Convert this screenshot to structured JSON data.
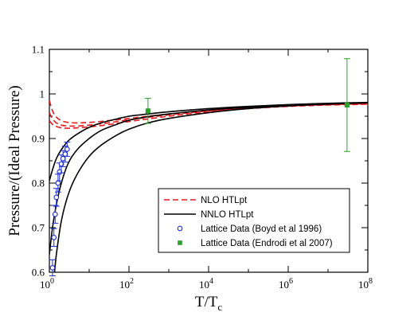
{
  "chart_data": {
    "type": "line",
    "title": "",
    "xlabel": "T/T",
    "xlabel_sub": "c",
    "ylabel": "Pressure/(Ideal Pressure)",
    "x_scale": "log",
    "xlim": [
      1,
      100000000
    ],
    "ylim": [
      0.6,
      1.1
    ],
    "x_ticks": [
      {
        "value": 1,
        "base": "10",
        "exp": "0"
      },
      {
        "value": 100,
        "base": "10",
        "exp": "2"
      },
      {
        "value": 10000,
        "base": "10",
        "exp": "4"
      },
      {
        "value": 1000000,
        "base": "10",
        "exp": "6"
      },
      {
        "value": 100000000,
        "base": "10",
        "exp": "8"
      }
    ],
    "y_ticks": [
      {
        "value": 0.6,
        "label": "0.6"
      },
      {
        "value": 0.7,
        "label": "0.7"
      },
      {
        "value": 0.8,
        "label": "0.8"
      },
      {
        "value": 0.9,
        "label": "0.9"
      },
      {
        "value": 1.0,
        "label": "1"
      },
      {
        "value": 1.1,
        "label": "1.1"
      }
    ],
    "grid": false,
    "legend_position": "bottom-right",
    "series": [
      {
        "name": "NLO HTLpt",
        "style": "dashed",
        "color": "#e8191c",
        "lines": [
          {
            "x": [
              1,
              1.2,
              1.5,
              2,
              3,
              5,
              10,
              30,
              100,
              1000,
              10000,
              100000,
              1000000,
              10000000,
              100000000
            ],
            "y": [
              0.985,
              0.962,
              0.948,
              0.94,
              0.936,
              0.935,
              0.936,
              0.94,
              0.945,
              0.955,
              0.963,
              0.969,
              0.973,
              0.976,
              0.978
            ]
          },
          {
            "x": [
              1,
              1.2,
              1.5,
              2,
              3,
              5,
              10,
              30,
              100,
              1000,
              10000,
              100000,
              1000000,
              10000000,
              100000000
            ],
            "y": [
              0.958,
              0.944,
              0.935,
              0.93,
              0.928,
              0.928,
              0.93,
              0.935,
              0.942,
              0.953,
              0.962,
              0.968,
              0.973,
              0.976,
              0.978
            ]
          },
          {
            "x": [
              1,
              1.2,
              1.5,
              2,
              3,
              5,
              10,
              30,
              100,
              1000,
              10000,
              100000,
              1000000,
              10000000,
              100000000
            ],
            "y": [
              0.94,
              0.932,
              0.927,
              0.924,
              0.923,
              0.924,
              0.926,
              0.931,
              0.938,
              0.95,
              0.96,
              0.967,
              0.972,
              0.975,
              0.977
            ]
          }
        ]
      },
      {
        "name": "NNLO HTLpt",
        "style": "solid",
        "color": "#000000",
        "lines": [
          {
            "x": [
              1,
              1.2,
              1.5,
              2,
              3,
              5,
              10,
              20,
              50,
              100,
              300,
              1000,
              10000,
              100000,
              1000000,
              10000000,
              100000000
            ],
            "y": [
              0.805,
              0.83,
              0.855,
              0.875,
              0.895,
              0.91,
              0.925,
              0.935,
              0.944,
              0.95,
              0.955,
              0.96,
              0.967,
              0.972,
              0.976,
              0.979,
              0.981
            ]
          },
          {
            "x": [
              1,
              1.2,
              1.5,
              2,
              3,
              5,
              10,
              20,
              50,
              100,
              300,
              1000,
              10000,
              100000,
              1000000,
              10000000,
              100000000
            ],
            "y": [
              0.64,
              0.7,
              0.752,
              0.8,
              0.845,
              0.875,
              0.9,
              0.918,
              0.932,
              0.941,
              0.949,
              0.955,
              0.964,
              0.97,
              0.975,
              0.978,
              0.98
            ]
          },
          {
            "x": [
              1.35,
              1.5,
              2,
              3,
              5,
              10,
              20,
              50,
              100,
              300,
              1000,
              10000,
              100000,
              1000000,
              10000000,
              100000000
            ],
            "y": [
              0.6,
              0.64,
              0.715,
              0.775,
              0.82,
              0.86,
              0.885,
              0.908,
              0.921,
              0.935,
              0.945,
              0.958,
              0.967,
              0.973,
              0.977,
              0.98
            ]
          }
        ]
      },
      {
        "name": "Lattice Data (Boyd et al 1996)",
        "style": "markers",
        "marker": "open-circle",
        "color": "#1d2fd6",
        "points": [
          {
            "x": 1.2,
            "y": 0.61,
            "err": 0.018
          },
          {
            "x": 1.3,
            "y": 0.678,
            "err": 0.02
          },
          {
            "x": 1.4,
            "y": 0.73,
            "err": 0.02
          },
          {
            "x": 1.5,
            "y": 0.768,
            "err": 0.02
          },
          {
            "x": 1.65,
            "y": 0.8,
            "err": 0.02
          },
          {
            "x": 1.8,
            "y": 0.825,
            "err": 0.02
          },
          {
            "x": 2.0,
            "y": 0.843,
            "err": 0.02
          },
          {
            "x": 2.2,
            "y": 0.855,
            "err": 0.018
          },
          {
            "x": 2.5,
            "y": 0.865,
            "err": 0.018
          },
          {
            "x": 2.8,
            "y": 0.876,
            "err": 0.016
          }
        ]
      },
      {
        "name": "Lattice Data (Endrodi et al 2007)",
        "style": "markers",
        "marker": "filled-square",
        "color": "#2ca02c",
        "points": [
          {
            "x": 300,
            "y": 0.962,
            "err": 0.028
          },
          {
            "x": 30000000,
            "y": 0.975,
            "err": 0.104
          }
        ]
      }
    ]
  }
}
